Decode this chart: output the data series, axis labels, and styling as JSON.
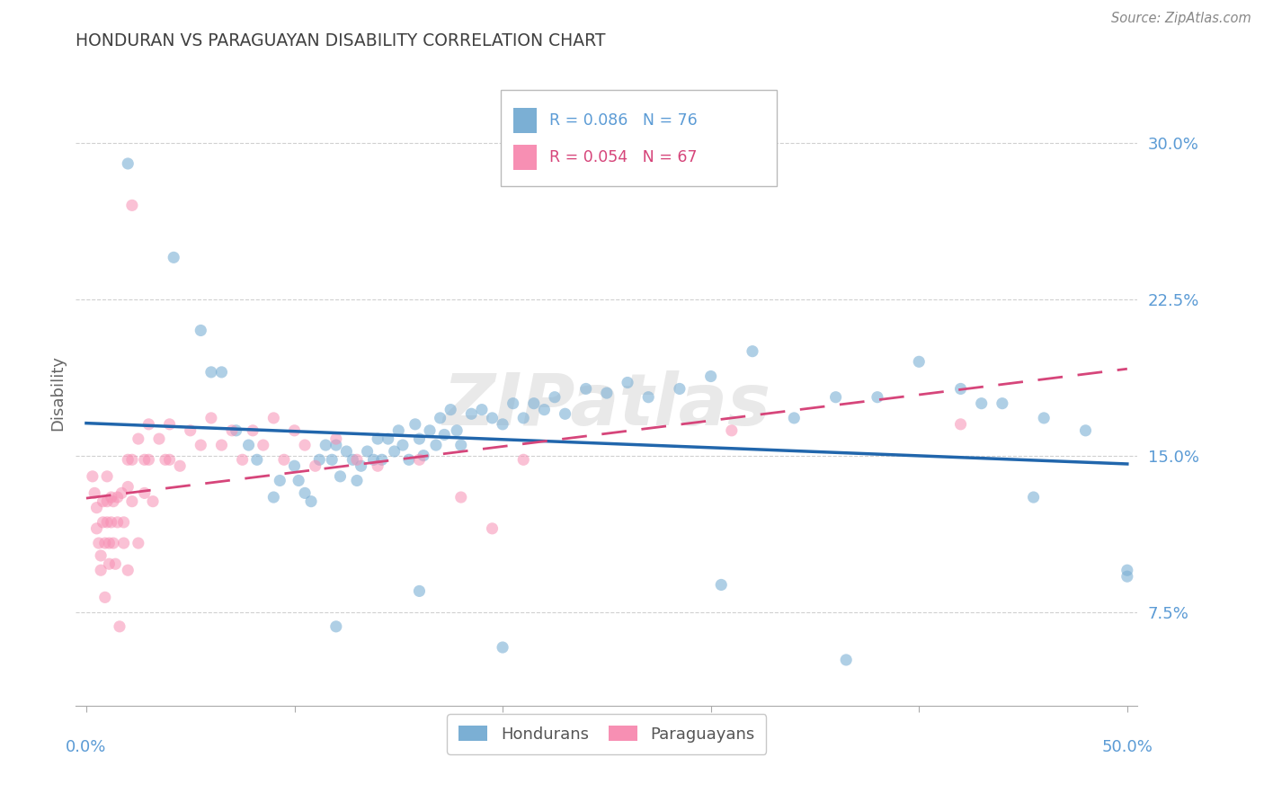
{
  "title": "HONDURAN VS PARAGUAYAN DISABILITY CORRELATION CHART",
  "source": "Source: ZipAtlas.com",
  "ylabel": "Disability",
  "ytick_labels": [
    "7.5%",
    "15.0%",
    "22.5%",
    "30.0%"
  ],
  "ytick_values": [
    0.075,
    0.15,
    0.225,
    0.3
  ],
  "xlim": [
    -0.005,
    0.505
  ],
  "ylim": [
    0.03,
    0.33
  ],
  "watermark": "ZIPatlas",
  "legend_blue_r": "R = 0.086",
  "legend_blue_n": "N = 76",
  "legend_pink_r": "R = 0.054",
  "legend_pink_n": "N = 67",
  "blue_scatter_color": "#7bafd4",
  "pink_scatter_color": "#f78fb3",
  "blue_line_color": "#2166ac",
  "pink_line_color": "#d6457a",
  "axis_tick_color": "#5b9bd5",
  "title_color": "#404040",
  "source_color": "#888888",
  "grid_color": "#d0d0d0",
  "hondurans_x": [
    0.02,
    0.042,
    0.055,
    0.06,
    0.065,
    0.072,
    0.078,
    0.082,
    0.09,
    0.093,
    0.1,
    0.102,
    0.105,
    0.108,
    0.112,
    0.115,
    0.118,
    0.12,
    0.122,
    0.125,
    0.128,
    0.13,
    0.132,
    0.135,
    0.138,
    0.14,
    0.142,
    0.145,
    0.148,
    0.15,
    0.152,
    0.155,
    0.158,
    0.16,
    0.162,
    0.165,
    0.168,
    0.17,
    0.172,
    0.175,
    0.178,
    0.18,
    0.185,
    0.19,
    0.195,
    0.2,
    0.205,
    0.21,
    0.215,
    0.22,
    0.225,
    0.23,
    0.24,
    0.25,
    0.26,
    0.27,
    0.285,
    0.3,
    0.32,
    0.34,
    0.36,
    0.38,
    0.4,
    0.42,
    0.44,
    0.46,
    0.48,
    0.5,
    0.12,
    0.16,
    0.2,
    0.43,
    0.455,
    0.5,
    0.365,
    0.305
  ],
  "hondurans_y": [
    0.29,
    0.245,
    0.21,
    0.19,
    0.19,
    0.162,
    0.155,
    0.148,
    0.13,
    0.138,
    0.145,
    0.138,
    0.132,
    0.128,
    0.148,
    0.155,
    0.148,
    0.155,
    0.14,
    0.152,
    0.148,
    0.138,
    0.145,
    0.152,
    0.148,
    0.158,
    0.148,
    0.158,
    0.152,
    0.162,
    0.155,
    0.148,
    0.165,
    0.158,
    0.15,
    0.162,
    0.155,
    0.168,
    0.16,
    0.172,
    0.162,
    0.155,
    0.17,
    0.172,
    0.168,
    0.165,
    0.175,
    0.168,
    0.175,
    0.172,
    0.178,
    0.17,
    0.182,
    0.18,
    0.185,
    0.178,
    0.182,
    0.188,
    0.2,
    0.168,
    0.178,
    0.178,
    0.195,
    0.182,
    0.175,
    0.168,
    0.162,
    0.092,
    0.068,
    0.085,
    0.058,
    0.175,
    0.13,
    0.095,
    0.052,
    0.088
  ],
  "paraguayans_x": [
    0.003,
    0.004,
    0.005,
    0.005,
    0.006,
    0.007,
    0.007,
    0.008,
    0.008,
    0.009,
    0.009,
    0.01,
    0.01,
    0.01,
    0.011,
    0.011,
    0.012,
    0.012,
    0.013,
    0.013,
    0.014,
    0.015,
    0.015,
    0.016,
    0.017,
    0.018,
    0.018,
    0.02,
    0.02,
    0.02,
    0.022,
    0.022,
    0.025,
    0.025,
    0.028,
    0.028,
    0.03,
    0.03,
    0.032,
    0.035,
    0.038,
    0.04,
    0.04,
    0.045,
    0.05,
    0.055,
    0.06,
    0.065,
    0.07,
    0.075,
    0.08,
    0.085,
    0.09,
    0.095,
    0.1,
    0.105,
    0.11,
    0.12,
    0.13,
    0.14,
    0.16,
    0.18,
    0.195,
    0.21,
    0.31,
    0.42,
    0.022
  ],
  "paraguayans_y": [
    0.14,
    0.132,
    0.125,
    0.115,
    0.108,
    0.102,
    0.095,
    0.128,
    0.118,
    0.108,
    0.082,
    0.14,
    0.128,
    0.118,
    0.108,
    0.098,
    0.13,
    0.118,
    0.128,
    0.108,
    0.098,
    0.13,
    0.118,
    0.068,
    0.132,
    0.118,
    0.108,
    0.148,
    0.135,
    0.095,
    0.148,
    0.128,
    0.158,
    0.108,
    0.148,
    0.132,
    0.165,
    0.148,
    0.128,
    0.158,
    0.148,
    0.165,
    0.148,
    0.145,
    0.162,
    0.155,
    0.168,
    0.155,
    0.162,
    0.148,
    0.162,
    0.155,
    0.168,
    0.148,
    0.162,
    0.155,
    0.145,
    0.158,
    0.148,
    0.145,
    0.148,
    0.13,
    0.115,
    0.148,
    0.162,
    0.165,
    0.27
  ]
}
